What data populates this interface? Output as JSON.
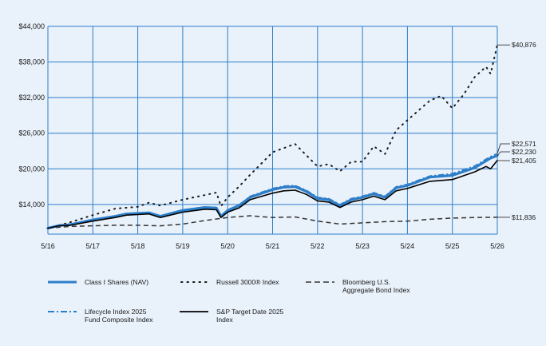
{
  "chart_data": {
    "type": "line",
    "title": "",
    "xlabel": "",
    "ylabel": "",
    "x_ticks": [
      "5/16",
      "5/17",
      "5/18",
      "5/19",
      "5/20",
      "5/21",
      "5/22",
      "5/23",
      "5/24",
      "5/25",
      "5/26"
    ],
    "y_ticks": [
      "$14,000",
      "$20,000",
      "$26,000",
      "$32,000",
      "$38,000",
      "$44,000"
    ],
    "ylim": [
      9000,
      44000
    ],
    "grid": true,
    "series": [
      {
        "name": "Class I Shares (NAV)",
        "color": "#2d7ec9",
        "style": "solid-thick",
        "end_label": "$22,230",
        "points": [
          [
            0,
            10000
          ],
          [
            0.25,
            10450
          ],
          [
            0.5,
            10600
          ],
          [
            1,
            11400
          ],
          [
            1.5,
            12000
          ],
          [
            1.75,
            12400
          ],
          [
            2,
            12500
          ],
          [
            2.25,
            12600
          ],
          [
            2.5,
            12000
          ],
          [
            3,
            13000
          ],
          [
            3.5,
            13500
          ],
          [
            3.75,
            13400
          ],
          [
            3.85,
            12000
          ],
          [
            4,
            13000
          ],
          [
            4.25,
            13800
          ],
          [
            4.5,
            15200
          ],
          [
            5,
            16500
          ],
          [
            5.25,
            16900
          ],
          [
            5.5,
            17000
          ],
          [
            5.75,
            16200
          ],
          [
            6,
            15000
          ],
          [
            6.25,
            14800
          ],
          [
            6.5,
            13800
          ],
          [
            6.75,
            14800
          ],
          [
            7,
            15200
          ],
          [
            7.25,
            15800
          ],
          [
            7.5,
            15200
          ],
          [
            7.75,
            16800
          ],
          [
            8,
            17200
          ],
          [
            8.5,
            18600
          ],
          [
            9,
            18900
          ],
          [
            9.5,
            20200
          ],
          [
            9.85,
            21800
          ],
          [
            10,
            22230
          ]
        ]
      },
      {
        "name": "Russell 3000® Index",
        "color": "#1a1a1a",
        "style": "dotted",
        "end_label": "$40,876",
        "points": [
          [
            0,
            10000
          ],
          [
            0.5,
            11000
          ],
          [
            1,
            12200
          ],
          [
            1.5,
            13300
          ],
          [
            2,
            13600
          ],
          [
            2.25,
            14300
          ],
          [
            2.5,
            13800
          ],
          [
            3,
            14800
          ],
          [
            3.5,
            15600
          ],
          [
            3.75,
            16000
          ],
          [
            3.85,
            13700
          ],
          [
            4,
            15200
          ],
          [
            4.25,
            17000
          ],
          [
            4.5,
            19000
          ],
          [
            5,
            22800
          ],
          [
            5.25,
            23500
          ],
          [
            5.5,
            24200
          ],
          [
            5.75,
            22300
          ],
          [
            6,
            20400
          ],
          [
            6.25,
            20800
          ],
          [
            6.5,
            19600
          ],
          [
            6.75,
            21200
          ],
          [
            7,
            21200
          ],
          [
            7.25,
            23800
          ],
          [
            7.5,
            22500
          ],
          [
            7.75,
            26500
          ],
          [
            8,
            28200
          ],
          [
            8.5,
            31500
          ],
          [
            8.75,
            32300
          ],
          [
            9,
            30200
          ],
          [
            9.25,
            32500
          ],
          [
            9.5,
            35500
          ],
          [
            9.75,
            37200
          ],
          [
            9.85,
            36000
          ],
          [
            10,
            40876
          ]
        ]
      },
      {
        "name": "Bloomberg U.S.\nAggregate Bond Index",
        "color": "#333333",
        "style": "dashed",
        "end_label": "$11,836",
        "points": [
          [
            0,
            10000
          ],
          [
            0.5,
            10300
          ],
          [
            1,
            10400
          ],
          [
            1.5,
            10500
          ],
          [
            2,
            10500
          ],
          [
            2.5,
            10400
          ],
          [
            3,
            10700
          ],
          [
            3.5,
            11300
          ],
          [
            4,
            11800
          ],
          [
            4.5,
            12100
          ],
          [
            5,
            11800
          ],
          [
            5.5,
            11900
          ],
          [
            6,
            11200
          ],
          [
            6.5,
            10700
          ],
          [
            7,
            10900
          ],
          [
            7.5,
            11100
          ],
          [
            8,
            11200
          ],
          [
            8.5,
            11500
          ],
          [
            9,
            11700
          ],
          [
            9.5,
            11800
          ],
          [
            10,
            11836
          ]
        ]
      },
      {
        "name": "Lifecycle Index 2025\nFund Composite Index",
        "color": "#2d7ec9",
        "style": "dashdot",
        "end_label": "$22,571",
        "points": [
          [
            0,
            10000
          ],
          [
            0.25,
            10500
          ],
          [
            0.5,
            10700
          ],
          [
            1,
            11500
          ],
          [
            1.5,
            12100
          ],
          [
            1.75,
            12500
          ],
          [
            2,
            12600
          ],
          [
            2.25,
            12700
          ],
          [
            2.5,
            12100
          ],
          [
            3,
            13100
          ],
          [
            3.5,
            13600
          ],
          [
            3.75,
            13500
          ],
          [
            3.85,
            12100
          ],
          [
            4,
            13100
          ],
          [
            4.25,
            13900
          ],
          [
            4.5,
            15400
          ],
          [
            5,
            16700
          ],
          [
            5.25,
            17100
          ],
          [
            5.5,
            17200
          ],
          [
            5.75,
            16400
          ],
          [
            6,
            15200
          ],
          [
            6.25,
            15000
          ],
          [
            6.5,
            14000
          ],
          [
            6.75,
            15000
          ],
          [
            7,
            15400
          ],
          [
            7.25,
            16000
          ],
          [
            7.5,
            15400
          ],
          [
            7.75,
            17000
          ],
          [
            8,
            17400
          ],
          [
            8.5,
            18800
          ],
          [
            9,
            19200
          ],
          [
            9.5,
            20500
          ],
          [
            9.85,
            22100
          ],
          [
            10,
            22571
          ]
        ]
      },
      {
        "name": "S&P Target Date 2025\nIndex",
        "color": "#000000",
        "style": "solid",
        "end_label": "$21,405",
        "points": [
          [
            0,
            10000
          ],
          [
            0.25,
            10400
          ],
          [
            0.5,
            10500
          ],
          [
            1,
            11200
          ],
          [
            1.5,
            11800
          ],
          [
            1.75,
            12200
          ],
          [
            2,
            12300
          ],
          [
            2.25,
            12400
          ],
          [
            2.5,
            11800
          ],
          [
            3,
            12700
          ],
          [
            3.5,
            13200
          ],
          [
            3.75,
            13100
          ],
          [
            3.85,
            11800
          ],
          [
            4,
            12700
          ],
          [
            4.25,
            13400
          ],
          [
            4.5,
            14800
          ],
          [
            5,
            15900
          ],
          [
            5.25,
            16300
          ],
          [
            5.5,
            16400
          ],
          [
            5.75,
            15700
          ],
          [
            6,
            14600
          ],
          [
            6.25,
            14400
          ],
          [
            6.5,
            13500
          ],
          [
            6.75,
            14400
          ],
          [
            7,
            14800
          ],
          [
            7.25,
            15400
          ],
          [
            7.5,
            14800
          ],
          [
            7.75,
            16300
          ],
          [
            8,
            16700
          ],
          [
            8.5,
            17900
          ],
          [
            9,
            18200
          ],
          [
            9.5,
            19500
          ],
          [
            9.75,
            20400
          ],
          [
            9.85,
            20000
          ],
          [
            10,
            21405
          ]
        ]
      }
    ]
  },
  "legend_items": [
    {
      "label": "Class I Shares (NAV)"
    },
    {
      "label": "Russell 3000® Index"
    },
    {
      "label": "Bloomberg U.S.\nAggregate Bond Index"
    },
    {
      "label": "Lifecycle Index 2025\nFund Composite Index"
    },
    {
      "label": "S&P Target Date 2025\nIndex"
    }
  ]
}
